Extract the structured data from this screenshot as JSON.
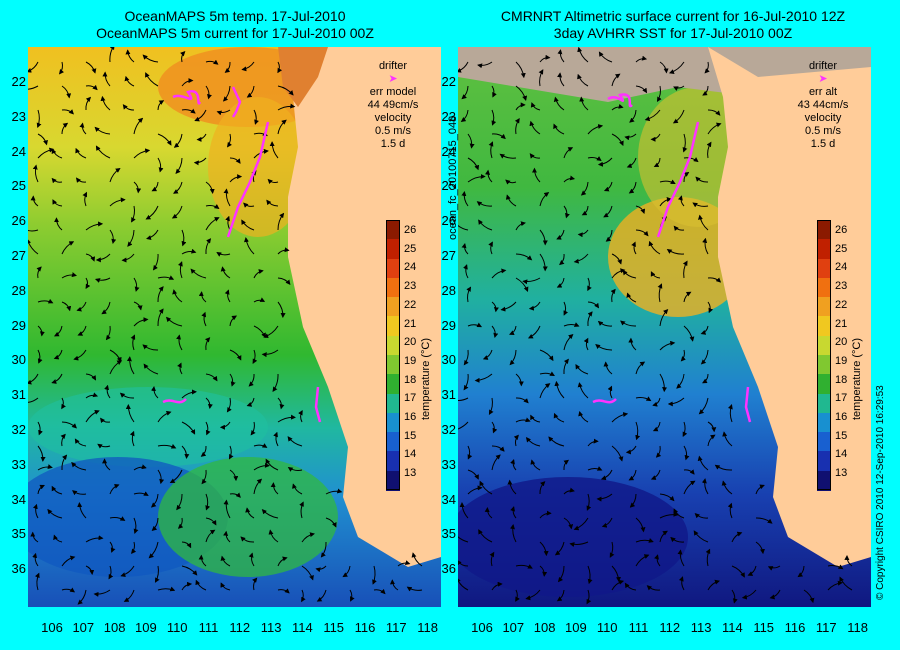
{
  "titles": {
    "left_line1": "OceanMAPS 5m temp. 17-Jul-2010",
    "left_line2": "OceanMAPS 5m current for 17-Jul-2010 00Z",
    "right_line1": "CMRNRT Altimetric surface current for 16-Jul-2010 12Z",
    "right_line2": "3day AVHRR SST for 17-Jul-2010 00Z"
  },
  "lat_labels": [
    "22",
    "23",
    "24",
    "25",
    "26",
    "27",
    "28",
    "29",
    "30",
    "31",
    "32",
    "33",
    "34",
    "35",
    "36"
  ],
  "lon_labels": [
    "106",
    "107",
    "108",
    "109",
    "110",
    "111",
    "112",
    "113",
    "114",
    "115",
    "116",
    "117",
    "118"
  ],
  "legend_left": {
    "drifter": "drifter",
    "err": "err model",
    "err_vals": "44 49cm/s",
    "velocity": "velocity",
    "speed": "0.5 m/s",
    "days": "1.5 d"
  },
  "legend_right": {
    "drifter": "drifter",
    "err": "err alt",
    "err_vals": "43 44cm/s",
    "velocity": "velocity",
    "speed": "0.5 m/s",
    "days": "1.5 d"
  },
  "colorbar": {
    "labels": [
      "26",
      "25",
      "24",
      "23",
      "22",
      "21",
      "20",
      "19",
      "18",
      "17",
      "16",
      "15",
      "14",
      "13"
    ],
    "title": "temperature (°C)",
    "range": [
      12.5,
      26.8
    ]
  },
  "center_id": "ocean_fc_20100715_048",
  "copyright": "© Copyright CSIRO 2010   12-Sep-2010 16:29:53",
  "colors": {
    "background": "#00ffff",
    "land": "#ffcc99",
    "land_dark": "#b8a898",
    "drifter": "#ff33ff",
    "arrow": "#000000"
  }
}
